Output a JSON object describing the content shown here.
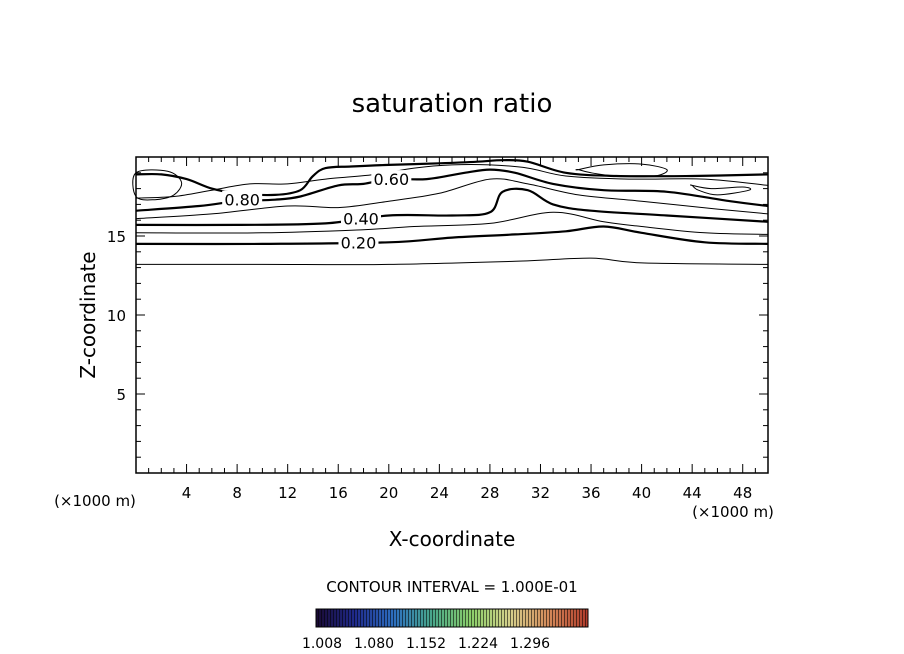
{
  "chart_data": {
    "type": "contour",
    "title": "saturation ratio",
    "xlabel": "X-coordinate",
    "ylabel": "Z-coordinate",
    "x_unit_left": "(×1000 m)",
    "x_unit_right": "(×1000 m)",
    "xlim": [
      0,
      50
    ],
    "ylim": [
      0,
      20
    ],
    "x_ticks": [
      4,
      8,
      12,
      16,
      20,
      24,
      28,
      32,
      36,
      40,
      44,
      48
    ],
    "y_ticks": [
      5,
      10,
      15
    ],
    "contour_interval_text": "CONTOUR INTERVAL = 1.000E-01",
    "contour_labels": [
      {
        "text": "0.20",
        "x": 17.6,
        "y": 14.6
      },
      {
        "text": "0.40",
        "x": 17.8,
        "y": 16.1
      },
      {
        "text": "0.60",
        "x": 20.2,
        "y": 18.6
      },
      {
        "text": "0.80",
        "x": 8.4,
        "y": 17.3
      }
    ],
    "contours": [
      {
        "level": 0.1,
        "bold": false,
        "points": [
          [
            0,
            13.2
          ],
          [
            10,
            13.2
          ],
          [
            20,
            13.2
          ],
          [
            30,
            13.4
          ],
          [
            36,
            13.6
          ],
          [
            40,
            13.3
          ],
          [
            50,
            13.2
          ]
        ]
      },
      {
        "level": 0.2,
        "bold": true,
        "points": [
          [
            0,
            14.5
          ],
          [
            10,
            14.5
          ],
          [
            20,
            14.6
          ],
          [
            25,
            14.9
          ],
          [
            30,
            15.1
          ],
          [
            34,
            15.3
          ],
          [
            37,
            15.6
          ],
          [
            40,
            15.2
          ],
          [
            45,
            14.6
          ],
          [
            50,
            14.5
          ]
        ]
      },
      {
        "level": 0.3,
        "bold": false,
        "points": [
          [
            0,
            15.2
          ],
          [
            10,
            15.2
          ],
          [
            18,
            15.4
          ],
          [
            22,
            15.6
          ],
          [
            28,
            15.8
          ],
          [
            33,
            16.5
          ],
          [
            37,
            15.9
          ],
          [
            40,
            15.6
          ],
          [
            45,
            15.2
          ],
          [
            50,
            15.1
          ]
        ]
      },
      {
        "level": 0.4,
        "bold": true,
        "points": [
          [
            0,
            15.7
          ],
          [
            8,
            15.7
          ],
          [
            15,
            15.8
          ],
          [
            20,
            16.3
          ],
          [
            25,
            16.3
          ],
          [
            28,
            16.5
          ],
          [
            29,
            17.8
          ],
          [
            31,
            17.9
          ],
          [
            33,
            17.0
          ],
          [
            36,
            16.6
          ],
          [
            42,
            16.3
          ],
          [
            50,
            15.9
          ]
        ]
      },
      {
        "level": 0.5,
        "bold": false,
        "points": [
          [
            0,
            16.1
          ],
          [
            6,
            16.4
          ],
          [
            12,
            16.9
          ],
          [
            16,
            16.8
          ],
          [
            20,
            17.2
          ],
          [
            24,
            17.7
          ],
          [
            28,
            18.6
          ],
          [
            31,
            18.3
          ],
          [
            35,
            17.6
          ],
          [
            40,
            17.2
          ],
          [
            46,
            16.7
          ],
          [
            50,
            16.4
          ]
        ]
      },
      {
        "level": 0.6,
        "bold": true,
        "points": [
          [
            0,
            16.6
          ],
          [
            5,
            16.9
          ],
          [
            8,
            17.2
          ],
          [
            11,
            17.3
          ],
          [
            13,
            17.5
          ],
          [
            16,
            18.2
          ],
          [
            18,
            18.3
          ],
          [
            20,
            18.6
          ],
          [
            23,
            18.6
          ],
          [
            26,
            19.0
          ],
          [
            28,
            19.2
          ],
          [
            30,
            19.0
          ],
          [
            33,
            18.3
          ],
          [
            37,
            17.9
          ],
          [
            42,
            17.8
          ],
          [
            47,
            17.2
          ],
          [
            50,
            16.9
          ]
        ]
      },
      {
        "level": 0.7,
        "bold": false,
        "points": [
          [
            0,
            17.4
          ],
          [
            3,
            17.5
          ],
          [
            6,
            17.9
          ],
          [
            9,
            18.3
          ],
          [
            12,
            18.3
          ],
          [
            15,
            18.6
          ],
          [
            19,
            18.9
          ],
          [
            22,
            19.3
          ],
          [
            25,
            19.5
          ],
          [
            28,
            19.5
          ],
          [
            31,
            19.3
          ],
          [
            34,
            18.8
          ],
          [
            39,
            18.6
          ],
          [
            45,
            18.6
          ],
          [
            50,
            18.2
          ]
        ]
      },
      {
        "level": 0.8,
        "bold": true,
        "points": [
          [
            0,
            18.9
          ],
          [
            2,
            18.9
          ],
          [
            4,
            18.6
          ],
          [
            6,
            18.0
          ],
          [
            8,
            17.7
          ],
          [
            11,
            17.6
          ],
          [
            13,
            17.9
          ],
          [
            14,
            18.8
          ],
          [
            15,
            19.3
          ],
          [
            17,
            19.4
          ],
          [
            20,
            19.5
          ],
          [
            24,
            19.6
          ],
          [
            27,
            19.7
          ],
          [
            29,
            19.8
          ],
          [
            31,
            19.7
          ],
          [
            34,
            19.0
          ],
          [
            38,
            18.8
          ],
          [
            44,
            18.8
          ],
          [
            50,
            18.9
          ]
        ]
      }
    ],
    "closed_contours": [
      {
        "level": 0.9,
        "points": [
          [
            0,
            19.0
          ],
          [
            2.5,
            19.1
          ],
          [
            3.6,
            18.4
          ],
          [
            3.0,
            17.6
          ],
          [
            1.5,
            17.3
          ],
          [
            0,
            17.5
          ]
        ]
      },
      {
        "level": 0.9,
        "points": [
          [
            35,
            19.2
          ],
          [
            37,
            19.5
          ],
          [
            40,
            19.55
          ],
          [
            42,
            19.2
          ],
          [
            41,
            18.8
          ],
          [
            38,
            18.8
          ],
          [
            36,
            19.0
          ],
          [
            35,
            19.2
          ]
        ]
      },
      {
        "level": 0.9,
        "points": [
          [
            44,
            18.2
          ],
          [
            45.5,
            18.0
          ],
          [
            48,
            18.1
          ],
          [
            48.5,
            17.9
          ],
          [
            46,
            17.6
          ],
          [
            44.5,
            17.9
          ],
          [
            44,
            18.2
          ]
        ]
      }
    ],
    "colorbar": {
      "tick_labels": [
        "1.008",
        "1.080",
        "1.152",
        "1.224",
        "1.296"
      ],
      "gradient_colors": [
        "#1a0a33",
        "#1f2a8c",
        "#2d6fc0",
        "#4aa88a",
        "#8ccf6a",
        "#d6d08c",
        "#d48a5a",
        "#b03a2a"
      ]
    },
    "grid": false
  }
}
